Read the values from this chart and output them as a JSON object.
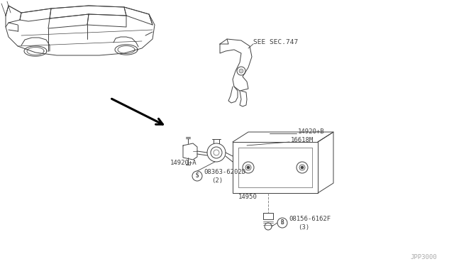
{
  "bg_color": "#ffffff",
  "line_color": "#404040",
  "part_number_bottom_right": "JPP3000",
  "labels": {
    "see_sec": "SEE SEC.747",
    "part_a": "14920+A",
    "part_b": "14920+B",
    "part_c": "16618M",
    "part_d": "08363-6202D",
    "part_d_qty": "(2)",
    "part_e": "14950",
    "part_f": "08156-6162F",
    "part_f_qty": "(3)",
    "circle_s": "S",
    "circle_b": "B"
  },
  "figsize": [
    6.4,
    3.72
  ],
  "dpi": 100
}
